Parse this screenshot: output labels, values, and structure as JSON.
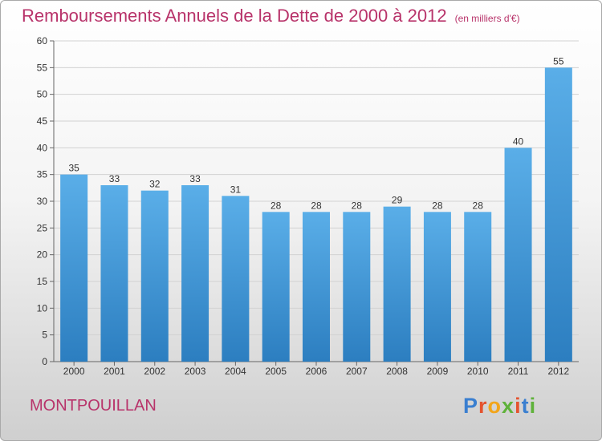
{
  "chart_data": {
    "type": "bar",
    "title": "Remboursements Annuels de la Dette de 2000 à 2012",
    "subtitle": "(en milliers d'€)",
    "categories": [
      "2000",
      "2001",
      "2002",
      "2003",
      "2004",
      "2005",
      "2006",
      "2007",
      "2008",
      "2009",
      "2010",
      "2011",
      "2012"
    ],
    "values": [
      35,
      33,
      32,
      33,
      31,
      28,
      28,
      28,
      29,
      28,
      28,
      40,
      55
    ],
    "ylim": [
      0,
      60
    ],
    "yticks": [
      0,
      5,
      10,
      15,
      20,
      25,
      30,
      35,
      40,
      45,
      50,
      55,
      60
    ],
    "grid": true,
    "colors": {
      "bar_top": "#5aaee8",
      "bar_bottom": "#2c7ec0",
      "title": "#b8336a"
    }
  },
  "footer": {
    "place": "MONTPOUILLAN",
    "logo_letters": [
      "P",
      "r",
      "o",
      "x",
      "i",
      "t",
      "i"
    ],
    "logo_colors": [
      "#3a7fd0",
      "#e4532f",
      "#f2a51a",
      "#5fb23a",
      "#e4532f",
      "#3a7fd0",
      "#5fb23a"
    ]
  }
}
